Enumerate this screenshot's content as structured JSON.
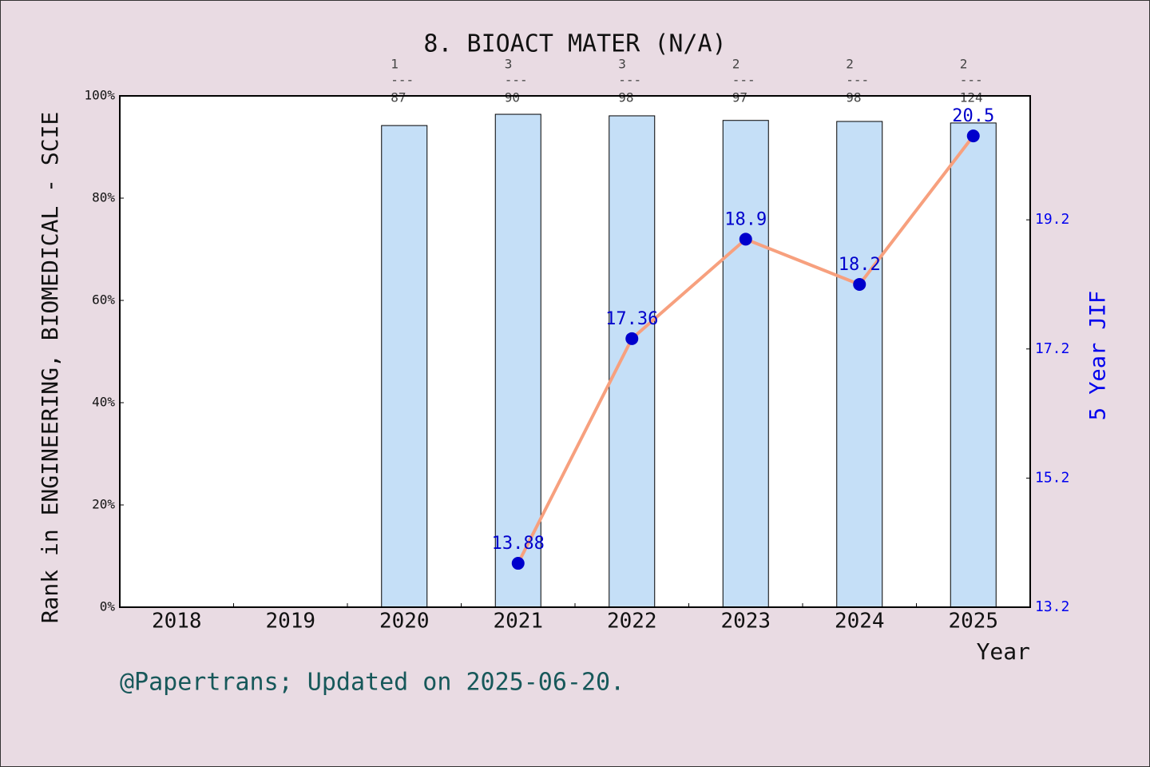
{
  "chart_data": {
    "type": "bar",
    "title": "8. BIOACT MATER (N/A)",
    "y_label": "Rank in ENGINEERING, BIOMEDICAL - SCIE",
    "y2_label": "5 Year JIF",
    "x_label": "Year",
    "footer": "@Papertrans; Updated on 2025-06-20.",
    "categories": [
      "2018",
      "2019",
      "2020",
      "2021",
      "2022",
      "2023",
      "2024",
      "2025"
    ],
    "ylim": [
      0,
      100
    ],
    "yticks": [
      {
        "value": 0,
        "label": "0%"
      },
      {
        "value": 20,
        "label": "20%"
      },
      {
        "value": 40,
        "label": "40%"
      },
      {
        "value": 60,
        "label": "60%"
      },
      {
        "value": 80,
        "label": "80%"
      },
      {
        "value": 100,
        "label": "100%"
      }
    ],
    "y2lim": [
      13.2,
      21.12
    ],
    "y2ticks": [
      13.2,
      15.2,
      17.2,
      19.2
    ],
    "rank_separator": "---",
    "series": [
      {
        "type": "bar",
        "color": "#c5dff7",
        "values": [
          null,
          null,
          94.2,
          96.4,
          96.1,
          95.2,
          95.0,
          94.7
        ],
        "ranks": [
          null,
          null,
          1,
          3,
          3,
          2,
          2,
          2
        ],
        "totals": [
          null,
          null,
          87,
          90,
          98,
          97,
          98,
          124
        ]
      },
      {
        "type": "line",
        "axis": "y2",
        "color": "#f7a07e",
        "marker_color": "#0000cc",
        "values": [
          null,
          null,
          null,
          13.88,
          17.36,
          18.9,
          18.2,
          20.5
        ]
      }
    ]
  }
}
